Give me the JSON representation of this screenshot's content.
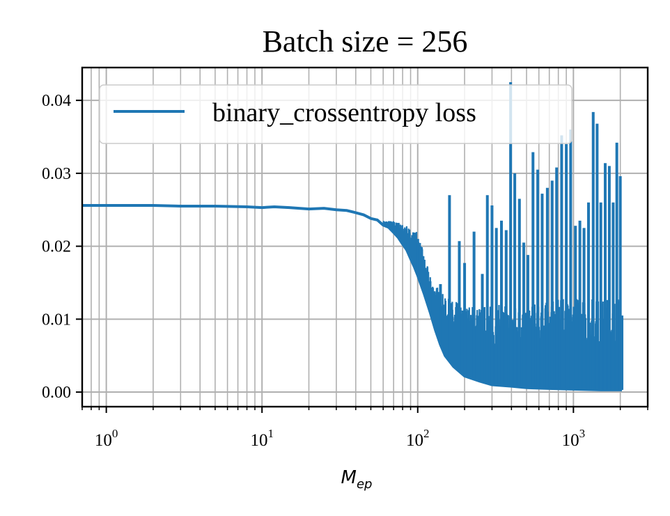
{
  "chart_data": {
    "type": "line",
    "title": "Batch size = 256",
    "xlabel": "M",
    "xlabel_subscript": "ep",
    "ylabel": "",
    "xscale": "log",
    "xlim": [
      0.7,
      3000
    ],
    "ylim": [
      -0.002,
      0.0445
    ],
    "x_ticks": [
      {
        "value": 1,
        "base": "10",
        "exp": "0"
      },
      {
        "value": 10,
        "base": "10",
        "exp": "1"
      },
      {
        "value": 100,
        "base": "10",
        "exp": "2"
      },
      {
        "value": 1000,
        "base": "10",
        "exp": "3"
      }
    ],
    "y_ticks": [
      {
        "value": 0.0,
        "label": "0.00"
      },
      {
        "value": 0.01,
        "label": "0.01"
      },
      {
        "value": 0.02,
        "label": "0.02"
      },
      {
        "value": 0.03,
        "label": "0.03"
      },
      {
        "value": 0.04,
        "label": "0.04"
      }
    ],
    "grid": true,
    "grid_minor_x": true,
    "legend": {
      "placement": "top-left"
    },
    "colors": {
      "series": "#1f77b4",
      "grid": "#b0b0b0",
      "axis": "#000000"
    },
    "series": [
      {
        "name": "binary_crossentropy loss",
        "color": "#1f77b4",
        "points": [
          [
            0.7,
            0.0256
          ],
          [
            1,
            0.0256
          ],
          [
            2,
            0.0256
          ],
          [
            3,
            0.0255
          ],
          [
            5,
            0.0255
          ],
          [
            8,
            0.0254
          ],
          [
            10,
            0.0253
          ],
          [
            12,
            0.0254
          ],
          [
            15,
            0.0253
          ],
          [
            20,
            0.0251
          ],
          [
            25,
            0.0252
          ],
          [
            30,
            0.025
          ],
          [
            35,
            0.0249
          ],
          [
            40,
            0.0246
          ],
          [
            45,
            0.0243
          ],
          [
            50,
            0.0238
          ],
          [
            55,
            0.0236
          ],
          [
            60,
            0.0229
          ],
          [
            65,
            0.0226
          ],
          [
            70,
            0.0219
          ],
          [
            75,
            0.0212
          ],
          [
            80,
            0.0203
          ],
          [
            85,
            0.0195
          ],
          [
            90,
            0.0183
          ],
          [
            95,
            0.0172
          ],
          [
            100,
            0.016
          ],
          [
            110,
            0.0135
          ],
          [
            120,
            0.011
          ],
          [
            130,
            0.0085
          ],
          [
            140,
            0.0065
          ],
          [
            150,
            0.005
          ],
          [
            170,
            0.0035
          ],
          [
            200,
            0.0022
          ],
          [
            250,
            0.0015
          ],
          [
            300,
            0.001
          ],
          [
            400,
            0.0008
          ],
          [
            500,
            0.0006
          ],
          [
            700,
            0.0005
          ],
          [
            1000,
            0.0004
          ],
          [
            1500,
            0.0003
          ],
          [
            2050,
            0.0003
          ]
        ],
        "noise_band": {
          "x_start": 60,
          "x_end": 2050,
          "upper_envelope": [
            [
              60,
              0.0235
            ],
            [
              70,
              0.0235
            ],
            [
              80,
              0.023
            ],
            [
              90,
              0.0225
            ],
            [
              100,
              0.022
            ],
            [
              120,
              0.016
            ],
            [
              150,
              0.013
            ],
            [
              200,
              0.012
            ],
            [
              300,
              0.012
            ],
            [
              500,
              0.012
            ],
            [
              1000,
              0.013
            ],
            [
              2050,
              0.013
            ]
          ],
          "spikes": [
            [
              62,
              0.0228
            ],
            [
              75,
              0.0232
            ],
            [
              86,
              0.0208
            ],
            [
              100,
              0.021
            ],
            [
              120,
              0.0152
            ],
            [
              140,
              0.0148
            ],
            [
              160,
              0.027
            ],
            [
              185,
              0.0207
            ],
            [
              200,
              0.0177
            ],
            [
              230,
              0.022
            ],
            [
              260,
              0.0162
            ],
            [
              280,
              0.027
            ],
            [
              300,
              0.0256
            ],
            [
              320,
              0.0225
            ],
            [
              345,
              0.0235
            ],
            [
              370,
              0.0222
            ],
            [
              395,
              0.0425
            ],
            [
              420,
              0.03
            ],
            [
              450,
              0.0265
            ],
            [
              480,
              0.0205
            ],
            [
              510,
              0.0188
            ],
            [
              550,
              0.0329
            ],
            [
              590,
              0.0305
            ],
            [
              630,
              0.0272
            ],
            [
              680,
              0.028
            ],
            [
              730,
              0.029
            ],
            [
              780,
              0.0308
            ],
            [
              840,
              0.0352
            ],
            [
              900,
              0.034
            ],
            [
              960,
              0.036
            ],
            [
              1030,
              0.0228
            ],
            [
              1100,
              0.0235
            ],
            [
              1170,
              0.0225
            ],
            [
              1250,
              0.026
            ],
            [
              1340,
              0.0384
            ],
            [
              1420,
              0.0368
            ],
            [
              1500,
              0.026
            ],
            [
              1600,
              0.0314
            ],
            [
              1700,
              0.031
            ],
            [
              1800,
              0.026
            ],
            [
              1900,
              0.0342
            ],
            [
              2000,
              0.0296
            ]
          ]
        }
      }
    ]
  }
}
